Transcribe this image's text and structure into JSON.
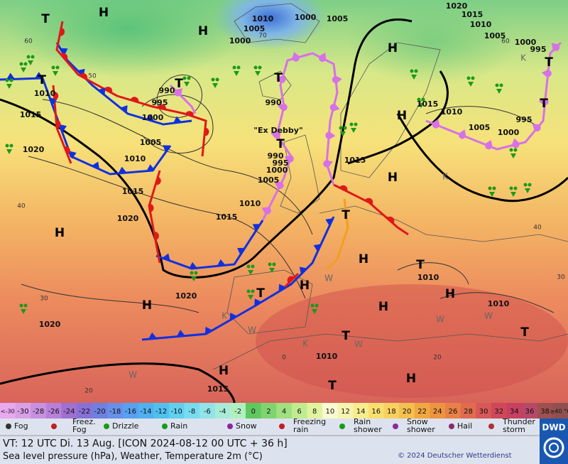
{
  "map": {
    "isobar_labels": [
      "1010",
      "1000",
      "1005",
      "1005",
      "1000",
      "990",
      "995",
      "1000",
      "1005",
      "1010",
      "1015",
      "1020",
      "1010",
      "1015",
      "1020",
      "990",
      "990",
      "995",
      "1000",
      "1005",
      "1010",
      "1015",
      "1020",
      "1020",
      "1015",
      "1010",
      "1015",
      "1015",
      "1010",
      "1005",
      "1000",
      "995",
      "1000",
      "995",
      "1005",
      "1010",
      "1015",
      "1020",
      "1010",
      "1010"
    ],
    "pressure_centers": [
      "T",
      "H",
      "H",
      "T",
      "H",
      "T",
      "H",
      "H",
      "T",
      "H",
      "H",
      "T",
      "H",
      "H",
      "T",
      "H",
      "T",
      "T",
      "H",
      "H",
      "T",
      "H",
      "T",
      "T",
      "T",
      "T"
    ],
    "small_markers": [
      "K",
      "K",
      "K",
      "K",
      "W",
      "W",
      "W",
      "W",
      "W",
      "W"
    ],
    "grid_labels": [
      "60",
      "50",
      "40",
      "30",
      "20",
      "70",
      "60",
      "40",
      "30",
      "20",
      "0"
    ],
    "storm_name": "\"Ex Debby\""
  },
  "color_scale": {
    "labels": [
      "<-30",
      "-30",
      "-28",
      "-26",
      "-24",
      "-22",
      "-20",
      "-18",
      "-16",
      "-14",
      "-12",
      "-10",
      "-8",
      "-6",
      "-4",
      "-2",
      "0",
      "2",
      "4",
      "6",
      "8",
      "10",
      "12",
      "14",
      "16",
      "18",
      "20",
      "22",
      "24",
      "26",
      "28",
      "30",
      "32",
      "34",
      "36",
      "38",
      "≥40 °C"
    ]
  },
  "weather_legend": [
    {
      "label": [
        "Fog"
      ]
    },
    {
      "label": [
        "Freez.",
        "Fog"
      ]
    },
    {
      "label": [
        "Drizzle"
      ]
    },
    {
      "label": [
        "Rain"
      ]
    },
    {
      "label": [
        "Snow"
      ]
    },
    {
      "label": [
        "Freezing",
        "rain"
      ]
    },
    {
      "label": [
        "Rain",
        "shower"
      ]
    },
    {
      "label": [
        "Snow",
        "shower"
      ]
    },
    {
      "label": [
        "Hail"
      ]
    },
    {
      "label": [
        "Thunder",
        "storm"
      ]
    }
  ],
  "footer": {
    "valid_time": "VT: 12 UTC Di.  13 Aug. [ICON 2024-08-12  00 UTC + 36 h]",
    "description": "Sea level pressure (hPa), Weather, Temperature 2m (°C)",
    "copyright": "© 2024 Deutscher Wetterdienst",
    "logo": "DWD"
  }
}
